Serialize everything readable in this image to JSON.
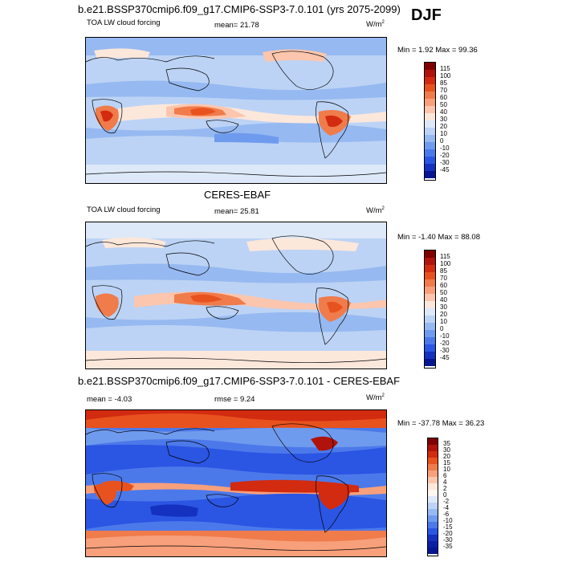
{
  "season": "DJF",
  "panels": [
    {
      "title": "b.e21.BSSP370cmip6.f09_g17.CMIP6-SSP3-7.0.101 (yrs 2075-2099)",
      "left": "TOA LW cloud forcing",
      "center_label": "mean=",
      "center_value": "21.78",
      "units": "W/m",
      "units_exp": "2",
      "minmax": "Min =  1.92 Max =  99.36",
      "colorbar": {
        "labels": [
          "115",
          "100",
          "85",
          "70",
          "60",
          "50",
          "40",
          "30",
          "20",
          "10",
          "0",
          "-10",
          "-20",
          "-30",
          "-45"
        ],
        "colors": [
          "#7f0000",
          "#b0130b",
          "#d22b10",
          "#e8521e",
          "#f07b4b",
          "#f7a07b",
          "#fbc6ad",
          "#fce7db",
          "#dde8f8",
          "#bcd3f5",
          "#96b9f1",
          "#6f9bee",
          "#4c79ea",
          "#2b55e3",
          "#1431c0",
          "#061591"
        ]
      }
    },
    {
      "title": "CERES-EBAF",
      "left": "TOA LW cloud forcing",
      "center_label": "mean=",
      "center_value": "25.81",
      "units": "W/m",
      "units_exp": "2",
      "minmax": "Min =  -1.40 Max =  88.08",
      "colorbar": {
        "labels": [
          "115",
          "100",
          "85",
          "70",
          "60",
          "50",
          "40",
          "30",
          "20",
          "10",
          "0",
          "-10",
          "-20",
          "-30",
          "-45"
        ],
        "colors": [
          "#7f0000",
          "#b0130b",
          "#d22b10",
          "#e8521e",
          "#f07b4b",
          "#f7a07b",
          "#fbc6ad",
          "#fce7db",
          "#dde8f8",
          "#bcd3f5",
          "#96b9f1",
          "#6f9bee",
          "#4c79ea",
          "#2b55e3",
          "#1431c0",
          "#061591"
        ]
      }
    },
    {
      "title": "b.e21.BSSP370cmip6.f09_g17.CMIP6-SSP3-7.0.101 - CERES-EBAF",
      "left_label": "mean =",
      "left_value": "-4.03",
      "center_label": "rmse =",
      "center_value": "9.24",
      "units": "W/m",
      "units_exp": "2",
      "minmax": "Min =  -37.78 Max =  36.23",
      "colorbar": {
        "labels": [
          "35",
          "30",
          "20",
          "15",
          "10",
          "6",
          "4",
          "2",
          "0",
          "-2",
          "-4",
          "-6",
          "-10",
          "-15",
          "-20",
          "-30",
          "-35"
        ],
        "colors": [
          "#7f0000",
          "#b0130b",
          "#d22b10",
          "#e8521e",
          "#f07b4b",
          "#f7a07b",
          "#fbc6ad",
          "#fce7db",
          "#fff6f0",
          "#dde8f8",
          "#bcd3f5",
          "#96b9f1",
          "#6f9bee",
          "#4c79ea",
          "#2b55e3",
          "#1431c0",
          "#0b1fa6",
          "#061591"
        ]
      }
    }
  ]
}
